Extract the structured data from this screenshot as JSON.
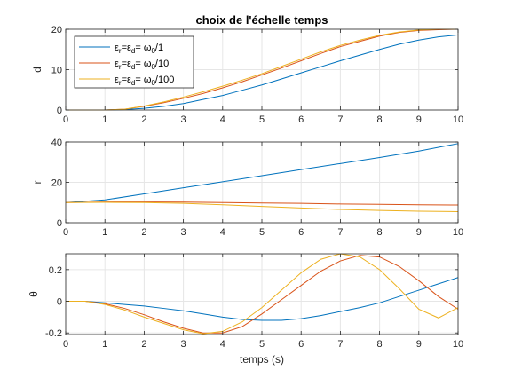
{
  "chart_data": [
    {
      "type": "line",
      "title": "choix de l'échelle temps",
      "xlabel": "",
      "ylabel": "d",
      "xlim": [
        0,
        10
      ],
      "ylim": [
        0,
        20
      ],
      "xticks": [
        "0",
        "1",
        "2",
        "3",
        "4",
        "5",
        "6",
        "7",
        "8",
        "9",
        "10"
      ],
      "yticks": [
        "0",
        "10",
        "20"
      ],
      "grid": true,
      "legend": {
        "placement": "top-left",
        "entries": [
          {
            "sym1": "ε",
            "sub1": "r",
            "eq": "=",
            "sym2": "ε",
            "sub2": "d",
            "eq2": "= ",
            "sym3": "ω",
            "sub3": "0",
            "tail": "/1"
          },
          {
            "sym1": "ε",
            "sub1": "r",
            "eq": "=",
            "sym2": "ε",
            "sub2": "d",
            "eq2": "= ",
            "sym3": "ω",
            "sub3": "0",
            "tail": "/10"
          },
          {
            "sym1": "ε",
            "sub1": "r",
            "eq": "=",
            "sym2": "ε",
            "sub2": "d",
            "eq2": "= ",
            "sym3": "ω",
            "sub3": "0",
            "tail": "/100"
          }
        ]
      },
      "x": [
        0,
        0.5,
        1,
        1.5,
        2,
        2.5,
        3,
        3.5,
        4,
        4.5,
        5,
        5.5,
        6,
        6.5,
        7,
        7.5,
        8,
        8.5,
        9,
        9.5,
        10
      ],
      "series": [
        {
          "color": "#0072BD",
          "values": [
            0,
            0,
            0,
            0.1,
            0.4,
            0.9,
            1.6,
            2.6,
            3.6,
            4.9,
            6.2,
            7.7,
            9.2,
            10.7,
            12.2,
            13.6,
            15.0,
            16.3,
            17.3,
            18.1,
            18.6
          ]
        },
        {
          "color": "#D95319",
          "values": [
            0,
            0,
            0,
            0.2,
            0.9,
            1.8,
            2.9,
            4.1,
            5.5,
            7.0,
            8.7,
            10.4,
            12.2,
            14.0,
            15.7,
            17.0,
            18.3,
            19.2,
            19.7,
            19.9,
            20
          ]
        },
        {
          "color": "#EDB120",
          "values": [
            0,
            0,
            0,
            0.2,
            1.0,
            2.0,
            3.2,
            4.5,
            5.9,
            7.4,
            9.0,
            10.8,
            12.6,
            14.4,
            16.0,
            17.3,
            18.5,
            19.3,
            19.8,
            20,
            20
          ]
        }
      ]
    },
    {
      "type": "line",
      "title": "",
      "xlabel": "",
      "ylabel": "r",
      "xlim": [
        0,
        10
      ],
      "ylim": [
        0,
        40
      ],
      "xticks": [
        "0",
        "1",
        "2",
        "3",
        "4",
        "5",
        "6",
        "7",
        "8",
        "9",
        "10"
      ],
      "yticks": [
        "0",
        "20",
        "40"
      ],
      "grid": true,
      "x": [
        0,
        1,
        2,
        3,
        4,
        5,
        6,
        7,
        8,
        9,
        10
      ],
      "series": [
        {
          "color": "#0072BD",
          "values": [
            10,
            11.3,
            14.3,
            17.3,
            20.3,
            23.3,
            26.3,
            29.3,
            32.3,
            35.5,
            39.2
          ]
        },
        {
          "color": "#D95319",
          "values": [
            10,
            10.3,
            10.3,
            10.2,
            10,
            9.8,
            9.6,
            9.3,
            9.1,
            8.9,
            8.8
          ]
        },
        {
          "color": "#EDB120",
          "values": [
            10,
            10.1,
            10,
            9.6,
            8.9,
            8.1,
            7.3,
            6.6,
            6.1,
            5.7,
            5.5
          ]
        }
      ]
    },
    {
      "type": "line",
      "title": "",
      "xlabel": "temps (s)",
      "ylabel": "θ",
      "xlim": [
        0,
        10
      ],
      "ylim": [
        -0.21,
        0.3
      ],
      "xticks": [
        "0",
        "1",
        "2",
        "3",
        "4",
        "5",
        "6",
        "7",
        "8",
        "9",
        "10"
      ],
      "yticks": [
        "-0.2",
        "0",
        "0.2"
      ],
      "ytickvalues": [
        -0.2,
        0,
        0.2
      ],
      "grid": true,
      "x": [
        0,
        0.5,
        1,
        1.5,
        2,
        2.5,
        3,
        3.5,
        4,
        4.5,
        5,
        5.5,
        6,
        6.5,
        7,
        7.5,
        8,
        8.5,
        9,
        9.5,
        10
      ],
      "series": [
        {
          "color": "#0072BD",
          "values": [
            0,
            0,
            -0.01,
            -0.02,
            -0.03,
            -0.045,
            -0.06,
            -0.08,
            -0.1,
            -0.115,
            -0.12,
            -0.12,
            -0.11,
            -0.09,
            -0.065,
            -0.04,
            -0.01,
            0.03,
            0.07,
            0.11,
            0.15
          ]
        },
        {
          "color": "#D95319",
          "values": [
            0,
            0,
            -0.015,
            -0.045,
            -0.085,
            -0.13,
            -0.17,
            -0.2,
            -0.2,
            -0.16,
            -0.08,
            0.01,
            0.1,
            0.19,
            0.255,
            0.29,
            0.28,
            0.22,
            0.13,
            0.03,
            -0.05
          ]
        },
        {
          "color": "#EDB120",
          "values": [
            0,
            0,
            -0.02,
            -0.055,
            -0.1,
            -0.14,
            -0.18,
            -0.205,
            -0.19,
            -0.13,
            -0.04,
            0.07,
            0.18,
            0.265,
            0.3,
            0.28,
            0.2,
            0.08,
            -0.05,
            -0.105,
            -0.04
          ]
        }
      ]
    }
  ]
}
